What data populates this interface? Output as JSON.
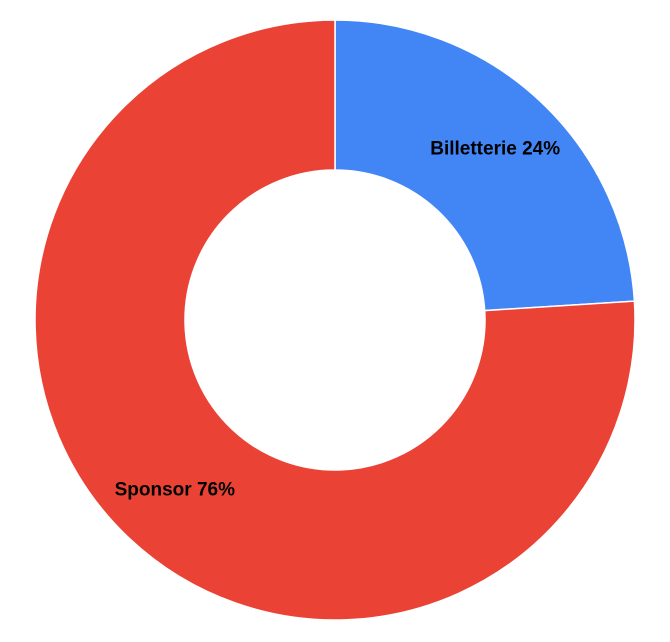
{
  "chart_data": {
    "type": "pie",
    "donut": true,
    "title": "",
    "legend": "none",
    "slices": [
      {
        "label": "Billetterie",
        "value": 24,
        "display": "Billetterie 24%",
        "color": "#4285F4"
      },
      {
        "label": "Sponsor",
        "value": 76,
        "display": "Sponsor 76%",
        "color": "#EA4335"
      }
    ]
  }
}
